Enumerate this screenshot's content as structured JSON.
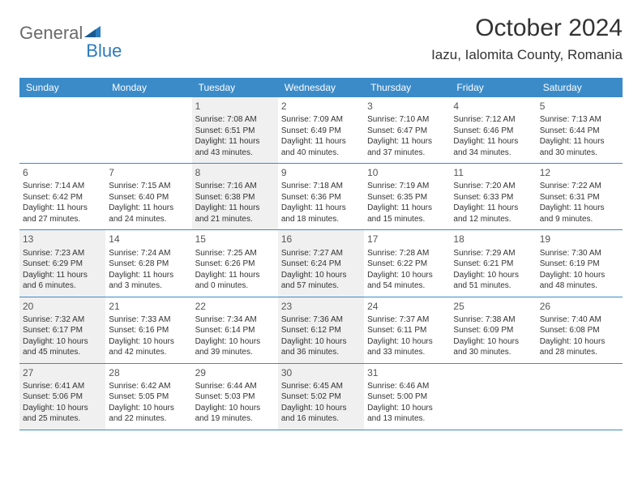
{
  "logo": {
    "part1": "General",
    "part2": "Blue"
  },
  "title": "October 2024",
  "location": "Iazu, Ialomita County, Romania",
  "header_bg": "#3b8bc9",
  "header_text_color": "#ffffff",
  "body_text_color": "#333333",
  "shaded_bg": "#f0f0f0",
  "day_headers": [
    "Sunday",
    "Monday",
    "Tuesday",
    "Wednesday",
    "Thursday",
    "Friday",
    "Saturday"
  ],
  "weeks": [
    [
      {
        "num": "",
        "shaded": false,
        "lines": [
          "",
          "",
          "",
          ""
        ]
      },
      {
        "num": "",
        "shaded": false,
        "lines": [
          "",
          "",
          "",
          ""
        ]
      },
      {
        "num": "1",
        "shaded": true,
        "lines": [
          "Sunrise: 7:08 AM",
          "Sunset: 6:51 PM",
          "Daylight: 11 hours",
          "and 43 minutes."
        ]
      },
      {
        "num": "2",
        "shaded": false,
        "lines": [
          "Sunrise: 7:09 AM",
          "Sunset: 6:49 PM",
          "Daylight: 11 hours",
          "and 40 minutes."
        ]
      },
      {
        "num": "3",
        "shaded": false,
        "lines": [
          "Sunrise: 7:10 AM",
          "Sunset: 6:47 PM",
          "Daylight: 11 hours",
          "and 37 minutes."
        ]
      },
      {
        "num": "4",
        "shaded": false,
        "lines": [
          "Sunrise: 7:12 AM",
          "Sunset: 6:46 PM",
          "Daylight: 11 hours",
          "and 34 minutes."
        ]
      },
      {
        "num": "5",
        "shaded": false,
        "lines": [
          "Sunrise: 7:13 AM",
          "Sunset: 6:44 PM",
          "Daylight: 11 hours",
          "and 30 minutes."
        ]
      }
    ],
    [
      {
        "num": "6",
        "shaded": false,
        "lines": [
          "Sunrise: 7:14 AM",
          "Sunset: 6:42 PM",
          "Daylight: 11 hours",
          "and 27 minutes."
        ]
      },
      {
        "num": "7",
        "shaded": false,
        "lines": [
          "Sunrise: 7:15 AM",
          "Sunset: 6:40 PM",
          "Daylight: 11 hours",
          "and 24 minutes."
        ]
      },
      {
        "num": "8",
        "shaded": true,
        "lines": [
          "Sunrise: 7:16 AM",
          "Sunset: 6:38 PM",
          "Daylight: 11 hours",
          "and 21 minutes."
        ]
      },
      {
        "num": "9",
        "shaded": false,
        "lines": [
          "Sunrise: 7:18 AM",
          "Sunset: 6:36 PM",
          "Daylight: 11 hours",
          "and 18 minutes."
        ]
      },
      {
        "num": "10",
        "shaded": false,
        "lines": [
          "Sunrise: 7:19 AM",
          "Sunset: 6:35 PM",
          "Daylight: 11 hours",
          "and 15 minutes."
        ]
      },
      {
        "num": "11",
        "shaded": false,
        "lines": [
          "Sunrise: 7:20 AM",
          "Sunset: 6:33 PM",
          "Daylight: 11 hours",
          "and 12 minutes."
        ]
      },
      {
        "num": "12",
        "shaded": false,
        "lines": [
          "Sunrise: 7:22 AM",
          "Sunset: 6:31 PM",
          "Daylight: 11 hours",
          "and 9 minutes."
        ]
      }
    ],
    [
      {
        "num": "13",
        "shaded": true,
        "lines": [
          "Sunrise: 7:23 AM",
          "Sunset: 6:29 PM",
          "Daylight: 11 hours",
          "and 6 minutes."
        ]
      },
      {
        "num": "14",
        "shaded": false,
        "lines": [
          "Sunrise: 7:24 AM",
          "Sunset: 6:28 PM",
          "Daylight: 11 hours",
          "and 3 minutes."
        ]
      },
      {
        "num": "15",
        "shaded": false,
        "lines": [
          "Sunrise: 7:25 AM",
          "Sunset: 6:26 PM",
          "Daylight: 11 hours",
          "and 0 minutes."
        ]
      },
      {
        "num": "16",
        "shaded": true,
        "lines": [
          "Sunrise: 7:27 AM",
          "Sunset: 6:24 PM",
          "Daylight: 10 hours",
          "and 57 minutes."
        ]
      },
      {
        "num": "17",
        "shaded": false,
        "lines": [
          "Sunrise: 7:28 AM",
          "Sunset: 6:22 PM",
          "Daylight: 10 hours",
          "and 54 minutes."
        ]
      },
      {
        "num": "18",
        "shaded": false,
        "lines": [
          "Sunrise: 7:29 AM",
          "Sunset: 6:21 PM",
          "Daylight: 10 hours",
          "and 51 minutes."
        ]
      },
      {
        "num": "19",
        "shaded": false,
        "lines": [
          "Sunrise: 7:30 AM",
          "Sunset: 6:19 PM",
          "Daylight: 10 hours",
          "and 48 minutes."
        ]
      }
    ],
    [
      {
        "num": "20",
        "shaded": true,
        "lines": [
          "Sunrise: 7:32 AM",
          "Sunset: 6:17 PM",
          "Daylight: 10 hours",
          "and 45 minutes."
        ]
      },
      {
        "num": "21",
        "shaded": false,
        "lines": [
          "Sunrise: 7:33 AM",
          "Sunset: 6:16 PM",
          "Daylight: 10 hours",
          "and 42 minutes."
        ]
      },
      {
        "num": "22",
        "shaded": false,
        "lines": [
          "Sunrise: 7:34 AM",
          "Sunset: 6:14 PM",
          "Daylight: 10 hours",
          "and 39 minutes."
        ]
      },
      {
        "num": "23",
        "shaded": true,
        "lines": [
          "Sunrise: 7:36 AM",
          "Sunset: 6:12 PM",
          "Daylight: 10 hours",
          "and 36 minutes."
        ]
      },
      {
        "num": "24",
        "shaded": false,
        "lines": [
          "Sunrise: 7:37 AM",
          "Sunset: 6:11 PM",
          "Daylight: 10 hours",
          "and 33 minutes."
        ]
      },
      {
        "num": "25",
        "shaded": false,
        "lines": [
          "Sunrise: 7:38 AM",
          "Sunset: 6:09 PM",
          "Daylight: 10 hours",
          "and 30 minutes."
        ]
      },
      {
        "num": "26",
        "shaded": false,
        "lines": [
          "Sunrise: 7:40 AM",
          "Sunset: 6:08 PM",
          "Daylight: 10 hours",
          "and 28 minutes."
        ]
      }
    ],
    [
      {
        "num": "27",
        "shaded": true,
        "lines": [
          "Sunrise: 6:41 AM",
          "Sunset: 5:06 PM",
          "Daylight: 10 hours",
          "and 25 minutes."
        ]
      },
      {
        "num": "28",
        "shaded": false,
        "lines": [
          "Sunrise: 6:42 AM",
          "Sunset: 5:05 PM",
          "Daylight: 10 hours",
          "and 22 minutes."
        ]
      },
      {
        "num": "29",
        "shaded": false,
        "lines": [
          "Sunrise: 6:44 AM",
          "Sunset: 5:03 PM",
          "Daylight: 10 hours",
          "and 19 minutes."
        ]
      },
      {
        "num": "30",
        "shaded": true,
        "lines": [
          "Sunrise: 6:45 AM",
          "Sunset: 5:02 PM",
          "Daylight: 10 hours",
          "and 16 minutes."
        ]
      },
      {
        "num": "31",
        "shaded": false,
        "lines": [
          "Sunrise: 6:46 AM",
          "Sunset: 5:00 PM",
          "Daylight: 10 hours",
          "and 13 minutes."
        ]
      },
      {
        "num": "",
        "shaded": false,
        "lines": [
          "",
          "",
          "",
          ""
        ]
      },
      {
        "num": "",
        "shaded": false,
        "lines": [
          "",
          "",
          "",
          ""
        ]
      }
    ]
  ]
}
